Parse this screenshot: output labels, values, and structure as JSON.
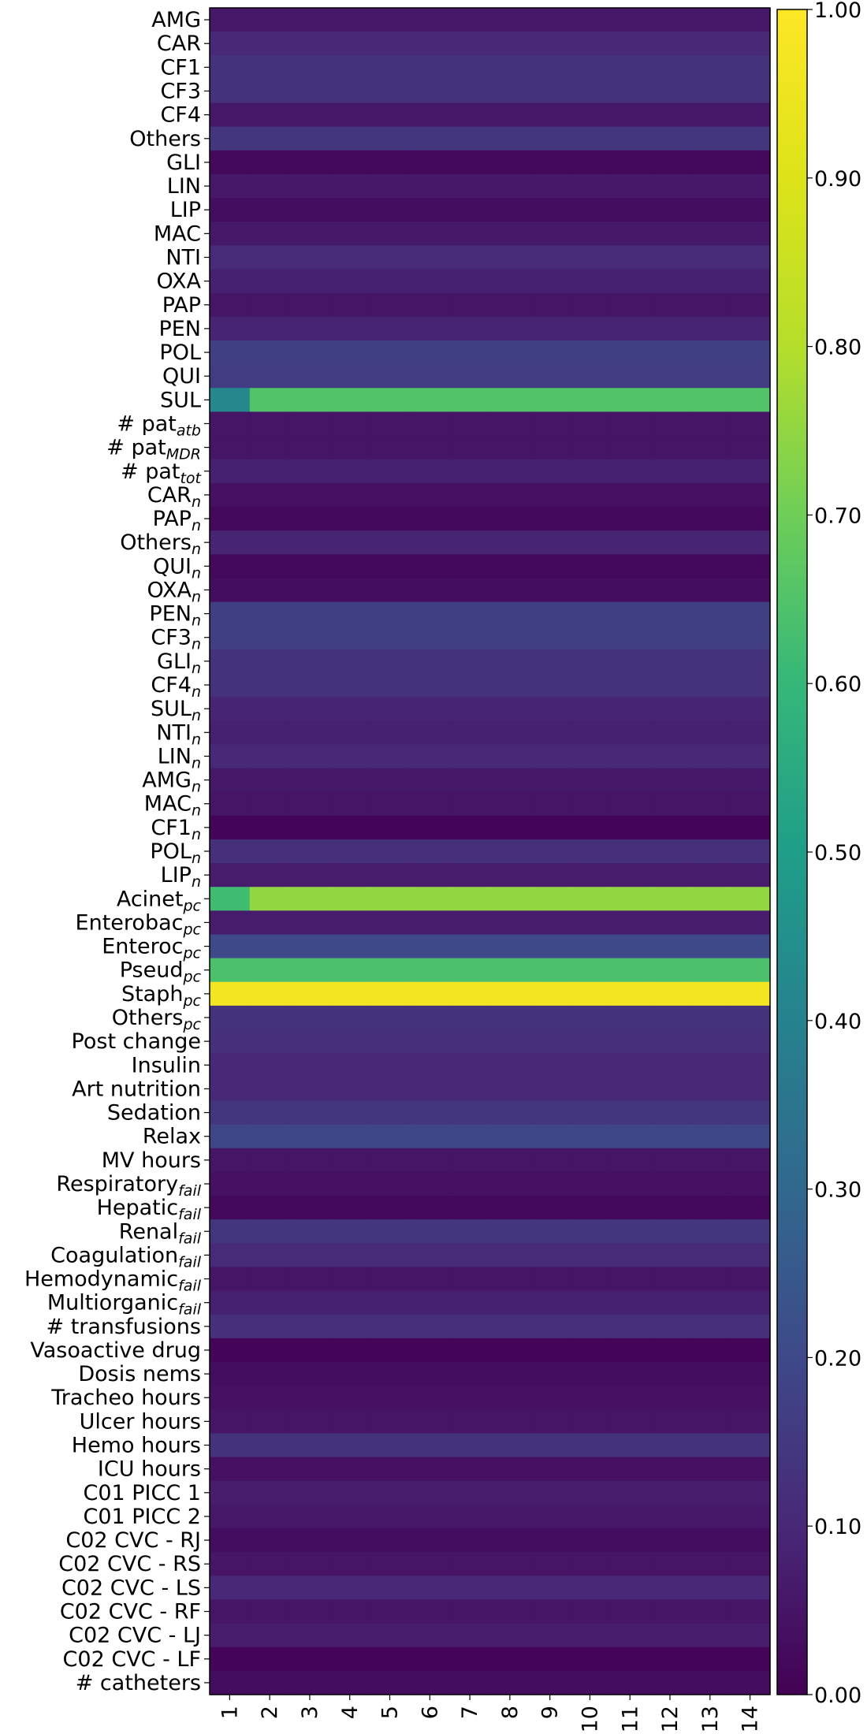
{
  "chart_data": {
    "type": "heatmap",
    "title": "",
    "xlabel": "",
    "ylabel": "",
    "x": [
      "1",
      "2",
      "3",
      "4",
      "5",
      "6",
      "7",
      "8",
      "9",
      "10",
      "11",
      "12",
      "13",
      "14"
    ],
    "rows": [
      {
        "label": "AMG",
        "sub": ""
      },
      {
        "label": "CAR",
        "sub": ""
      },
      {
        "label": "CF1",
        "sub": ""
      },
      {
        "label": "CF3",
        "sub": ""
      },
      {
        "label": "CF4",
        "sub": ""
      },
      {
        "label": "Others",
        "sub": ""
      },
      {
        "label": "GLI",
        "sub": ""
      },
      {
        "label": "LIN",
        "sub": ""
      },
      {
        "label": "LIP",
        "sub": ""
      },
      {
        "label": "MAC",
        "sub": ""
      },
      {
        "label": "NTI",
        "sub": ""
      },
      {
        "label": "OXA",
        "sub": ""
      },
      {
        "label": "PAP",
        "sub": ""
      },
      {
        "label": "PEN",
        "sub": ""
      },
      {
        "label": "POL",
        "sub": ""
      },
      {
        "label": "QUI",
        "sub": ""
      },
      {
        "label": "SUL",
        "sub": ""
      },
      {
        "label": "# pat",
        "sub": "atb"
      },
      {
        "label": "# pat",
        "sub": "MDR"
      },
      {
        "label": "# pat",
        "sub": "tot"
      },
      {
        "label": "CAR",
        "sub": "n"
      },
      {
        "label": "PAP",
        "sub": "n"
      },
      {
        "label": "Others",
        "sub": "n"
      },
      {
        "label": "QUI",
        "sub": "n"
      },
      {
        "label": "OXA",
        "sub": "n"
      },
      {
        "label": "PEN",
        "sub": "n"
      },
      {
        "label": "CF3",
        "sub": "n"
      },
      {
        "label": "GLI",
        "sub": "n"
      },
      {
        "label": "CF4",
        "sub": "n"
      },
      {
        "label": "SUL",
        "sub": "n"
      },
      {
        "label": "NTI",
        "sub": "n"
      },
      {
        "label": "LIN",
        "sub": "n"
      },
      {
        "label": "AMG",
        "sub": "n"
      },
      {
        "label": "MAC",
        "sub": "n"
      },
      {
        "label": "CF1",
        "sub": "n"
      },
      {
        "label": "POL",
        "sub": "n"
      },
      {
        "label": "LIP",
        "sub": "n"
      },
      {
        "label": "Acinet",
        "sub": "pc"
      },
      {
        "label": "Enterobac",
        "sub": "pc"
      },
      {
        "label": "Enteroc",
        "sub": "pc"
      },
      {
        "label": "Pseud",
        "sub": "pc"
      },
      {
        "label": "Staph",
        "sub": "pc"
      },
      {
        "label": "Others",
        "sub": "pc"
      },
      {
        "label": "Post change",
        "sub": ""
      },
      {
        "label": "Insulin",
        "sub": ""
      },
      {
        "label": "Art nutrition",
        "sub": ""
      },
      {
        "label": "Sedation",
        "sub": ""
      },
      {
        "label": "Relax",
        "sub": ""
      },
      {
        "label": "MV hours",
        "sub": ""
      },
      {
        "label": "Respiratory",
        "sub": "fail"
      },
      {
        "label": "Hepatic",
        "sub": "fail"
      },
      {
        "label": "Renal",
        "sub": "fail"
      },
      {
        "label": "Coagulation",
        "sub": "fail"
      },
      {
        "label": "Hemodynamic",
        "sub": "fail"
      },
      {
        "label": "Multiorganic",
        "sub": "fail"
      },
      {
        "label": "# transfusions",
        "sub": ""
      },
      {
        "label": "Vasoactive drug",
        "sub": ""
      },
      {
        "label": "Dosis nems",
        "sub": ""
      },
      {
        "label": "Tracheo hours",
        "sub": ""
      },
      {
        "label": "Ulcer hours",
        "sub": ""
      },
      {
        "label": "Hemo hours",
        "sub": ""
      },
      {
        "label": "ICU hours",
        "sub": ""
      },
      {
        "label": "C01 PICC 1",
        "sub": ""
      },
      {
        "label": "C01 PICC 2",
        "sub": ""
      },
      {
        "label": "C02 CVC - RJ",
        "sub": ""
      },
      {
        "label": "C02 CVC - RS",
        "sub": ""
      },
      {
        "label": "C02 CVC - LS",
        "sub": ""
      },
      {
        "label": "C02 CVC - RF",
        "sub": ""
      },
      {
        "label": "C02 CVC - LJ",
        "sub": ""
      },
      {
        "label": "C02 CVC - LF",
        "sub": ""
      },
      {
        "label": "# catheters",
        "sub": ""
      }
    ],
    "row_values": [
      0.06,
      0.1,
      0.13,
      0.13,
      0.06,
      0.14,
      0.02,
      0.06,
      0.03,
      0.06,
      0.11,
      0.08,
      0.05,
      0.09,
      0.17,
      0.16,
      0.65,
      0.05,
      0.05,
      0.08,
      0.04,
      0.02,
      0.09,
      0.02,
      0.03,
      0.17,
      0.17,
      0.13,
      0.13,
      0.09,
      0.08,
      0.1,
      0.06,
      0.05,
      0.01,
      0.12,
      0.07,
      0.75,
      0.07,
      0.2,
      0.64,
      0.97,
      0.13,
      0.12,
      0.1,
      0.1,
      0.14,
      0.19,
      0.05,
      0.04,
      0.02,
      0.14,
      0.11,
      0.05,
      0.08,
      0.12,
      0.01,
      0.03,
      0.04,
      0.05,
      0.13,
      0.04,
      0.07,
      0.06,
      0.03,
      0.05,
      0.1,
      0.05,
      0.07,
      0.01,
      0.03
    ],
    "first_column_values": {
      "16": 0.42,
      "37": 0.62
    },
    "colorbar": {
      "colormap": "viridis",
      "range": [
        0,
        1
      ],
      "ticks": [
        "0.00",
        "0.10",
        "0.20",
        "0.30",
        "0.40",
        "0.50",
        "0.60",
        "0.70",
        "0.80",
        "0.90",
        "1.00"
      ]
    }
  }
}
